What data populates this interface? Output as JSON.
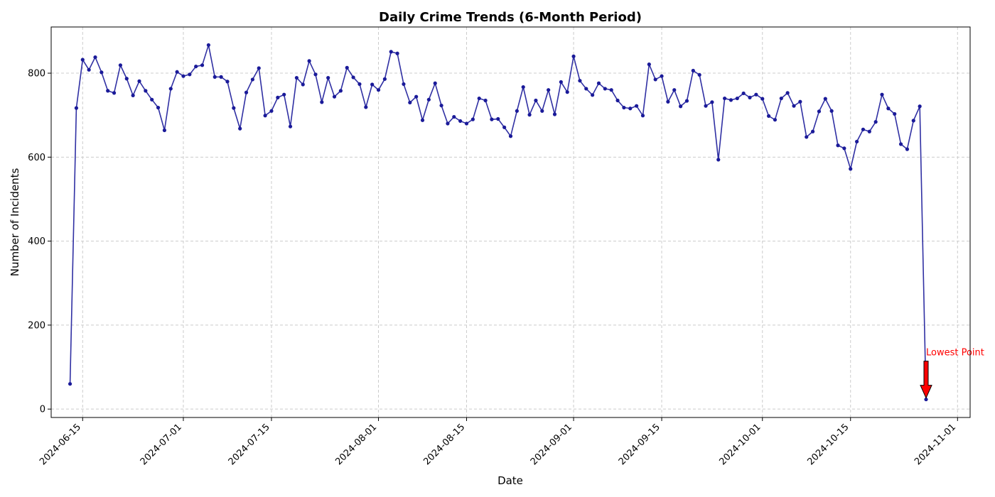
{
  "chart_data": {
    "type": "line",
    "title": "Daily Crime Trends (6-Month Period)",
    "xlabel": "Date",
    "ylabel": "Number of Incidents",
    "xlim": [
      "2024-06-10",
      "2024-11-03"
    ],
    "ylim": [
      -20,
      910
    ],
    "grid": true,
    "x_ticks": [
      "2024-06-15",
      "2024-07-01",
      "2024-07-15",
      "2024-08-01",
      "2024-08-15",
      "2024-09-01",
      "2024-09-15",
      "2024-10-01",
      "2024-10-15",
      "2024-11-01"
    ],
    "y_ticks": [
      0,
      200,
      400,
      600,
      800
    ],
    "series": [
      {
        "color": "#1a1a99",
        "start_date": "2024-06-13",
        "values": [
          60,
          717,
          832,
          808,
          838,
          802,
          758,
          753,
          819,
          787,
          747,
          781,
          758,
          737,
          718,
          664,
          763,
          803,
          793,
          797,
          816,
          819,
          867,
          791,
          791,
          780,
          717,
          668,
          754,
          785,
          812,
          699,
          710,
          742,
          749,
          673,
          789,
          773,
          829,
          797,
          731,
          789,
          744,
          758,
          813,
          790,
          774,
          719,
          773,
          760,
          786,
          851,
          847,
          774,
          730,
          744,
          688,
          737,
          776,
          723,
          680,
          696,
          686,
          680,
          690,
          740,
          735,
          690,
          691,
          671,
          650,
          710,
          767,
          701,
          735,
          710,
          760,
          702,
          779,
          755,
          840,
          782,
          763,
          748,
          776,
          763,
          760,
          735,
          718,
          716,
          722,
          699,
          821,
          785,
          793,
          732,
          760,
          721,
          734,
          806,
          796,
          722,
          731,
          594,
          740,
          736,
          740,
          752,
          742,
          749,
          739,
          698,
          689,
          740,
          753,
          722,
          732,
          648,
          661,
          709,
          739,
          710,
          628,
          621,
          572,
          637,
          666,
          661,
          684,
          749,
          716,
          703,
          631,
          619,
          687,
          721,
          23
        ]
      }
    ],
    "annotations": [
      {
        "text": "Lowest Point",
        "date": "2024-10-27",
        "value": 23,
        "color": "#ff0000"
      }
    ]
  }
}
